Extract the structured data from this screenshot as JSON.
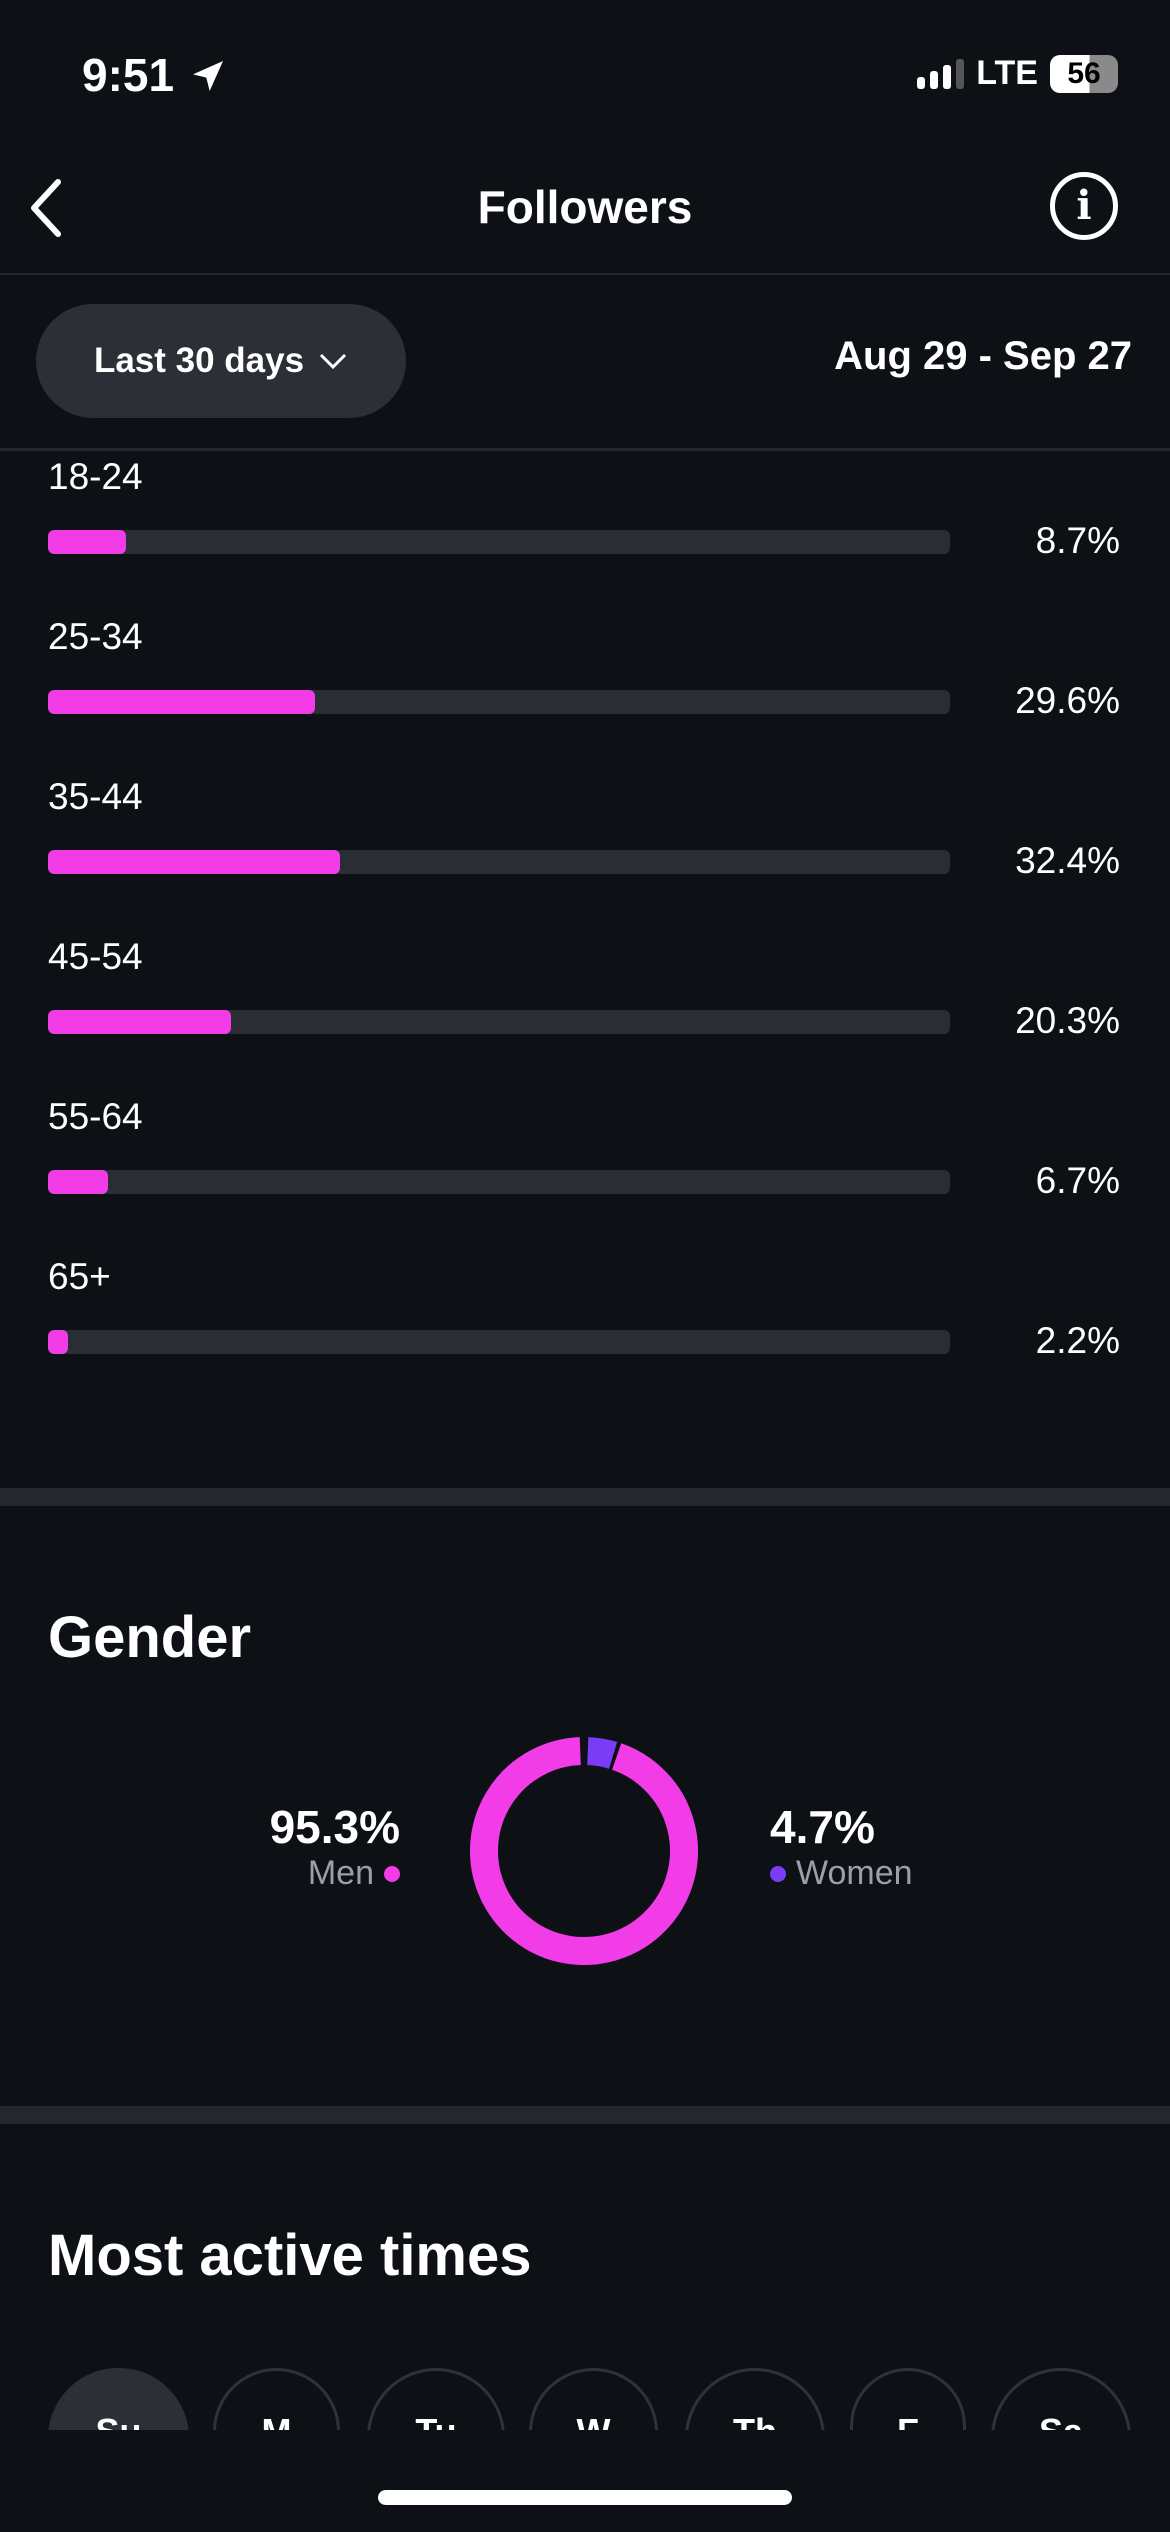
{
  "status_bar": {
    "time": "9:51",
    "network": "LTE",
    "battery": "56"
  },
  "nav": {
    "title": "Followers",
    "back_icon": "chevron-left-icon",
    "info_icon": "info-icon"
  },
  "filter": {
    "range_label": "Last 30 days",
    "date_range": "Aug 29 - Sep 27"
  },
  "age": [
    {
      "label": "18-24",
      "value": "8.7%",
      "pct": 8.7
    },
    {
      "label": "25-34",
      "value": "29.6%",
      "pct": 29.6
    },
    {
      "label": "35-44",
      "value": "32.4%",
      "pct": 32.4
    },
    {
      "label": "45-54",
      "value": "20.3%",
      "pct": 20.3
    },
    {
      "label": "55-64",
      "value": "6.7%",
      "pct": 6.7
    },
    {
      "label": "65+",
      "value": "2.2%",
      "pct": 2.2
    }
  ],
  "gender": {
    "title": "Gender",
    "men": {
      "value": "95.3%",
      "label": "Men",
      "pct": 95.3
    },
    "women": {
      "value": "4.7%",
      "label": "Women",
      "pct": 4.7
    }
  },
  "active_times": {
    "title": "Most active times",
    "days": [
      "Su",
      "M",
      "Tu",
      "W",
      "Th",
      "F",
      "Sa"
    ],
    "selected": "Su"
  },
  "colors": {
    "accent": "#f23ce8",
    "secondary": "#7a3cf5",
    "track": "#2a2d33",
    "background": "#0d1015"
  }
}
